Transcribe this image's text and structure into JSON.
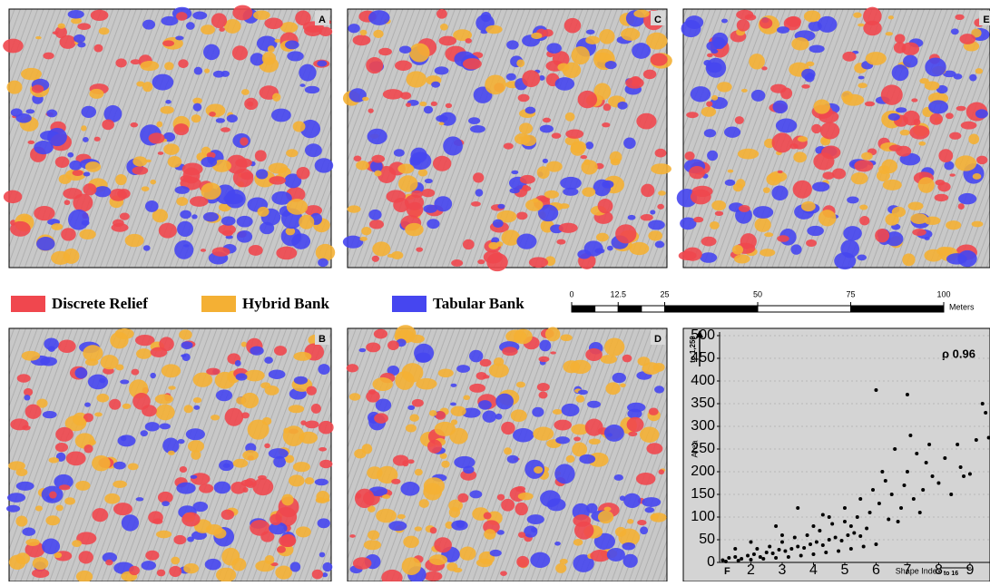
{
  "panels": [
    "A",
    "C",
    "E",
    "B",
    "D",
    "F"
  ],
  "legend": [
    {
      "name": "Discrete Relief",
      "color": "#f0474e"
    },
    {
      "name": "Hybrid Bank",
      "color": "#f4b034"
    },
    {
      "name": "Tabular Bank",
      "color": "#4646f0"
    }
  ],
  "scale": {
    "ticks": [
      0,
      12.5,
      25,
      50,
      75,
      100
    ],
    "unit": "Meters"
  },
  "chart_data": {
    "type": "scatter",
    "xlabel": "Shape Index",
    "ylabel": "Area",
    "annotation": "ρ 0.96",
    "y_overflow": "to 1,250",
    "x_overflow": "to 16",
    "color": "#000000",
    "grid": true,
    "xlim": [
      1,
      9.64
    ],
    "ylim": [
      0,
      500
    ],
    "xticks": [
      2,
      3,
      4,
      5,
      6,
      7,
      8,
      9
    ],
    "yticks": [
      0,
      50,
      100,
      150,
      200,
      250,
      300,
      350,
      400,
      450,
      500
    ],
    "x": [
      1.1,
      1.3,
      1.5,
      1.7,
      1.9,
      2.1,
      2.3,
      2.5,
      2.7,
      2.9,
      3.1,
      3.3,
      3.5,
      3.7,
      3.9,
      4.1,
      4.3,
      4.5,
      4.7,
      4.9,
      5.1,
      5.3,
      5.5,
      5.7,
      1.2,
      1.6,
      2.0,
      2.4,
      2.8,
      3.2,
      3.6,
      4.0,
      4.4,
      4.8,
      5.2,
      5.6,
      6.0,
      2.2,
      2.6,
      3.0,
      3.4,
      3.8,
      4.2,
      4.6,
      5.0,
      5.4,
      5.8,
      2.0,
      3.0,
      4.0,
      4.5,
      5.0,
      5.5,
      5.9,
      6.1,
      6.2,
      6.3,
      6.5,
      6.6,
      6.8,
      6.9,
      7.0,
      7.1,
      7.2,
      7.3,
      7.5,
      7.6,
      7.7,
      7.8,
      8.0,
      8.2,
      8.4,
      8.6,
      8.7,
      8.8,
      9.0,
      9.2,
      9.4,
      9.5,
      9.6,
      6.0,
      7.0,
      3.5,
      4.3,
      2.8,
      1.5,
      5.2,
      6.4,
      6.7,
      7.4
    ],
    "y": [
      5,
      10,
      12,
      8,
      15,
      18,
      12,
      22,
      20,
      28,
      25,
      30,
      35,
      32,
      40,
      45,
      38,
      50,
      55,
      48,
      60,
      65,
      58,
      75,
      2,
      4,
      6,
      8,
      10,
      12,
      15,
      18,
      22,
      25,
      30,
      35,
      40,
      30,
      35,
      45,
      55,
      60,
      70,
      85,
      90,
      100,
      110,
      45,
      60,
      80,
      100,
      120,
      140,
      160,
      130,
      200,
      180,
      150,
      250,
      120,
      170,
      200,
      280,
      140,
      240,
      160,
      220,
      260,
      190,
      175,
      230,
      150,
      260,
      210,
      190,
      195,
      270,
      350,
      330,
      275,
      380,
      370,
      120,
      105,
      80,
      30,
      80,
      95,
      90,
      110
    ]
  }
}
